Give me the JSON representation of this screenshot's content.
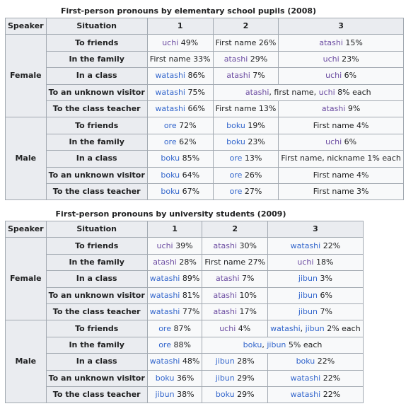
{
  "table1": {
    "caption": "First-person pronouns by elementary school pupils (2008)",
    "headers": [
      "Speaker",
      "Situation",
      "1",
      "2",
      "3"
    ],
    "groups": [
      {
        "speaker": "Female",
        "rows": [
          {
            "situation": "To friends",
            "c1": {
              "w": "uchi",
              "p": " 49%"
            },
            "c2": {
              "w": "First name",
              "p": " 26%"
            },
            "c3": {
              "w": "atashi",
              "p": " 15%"
            }
          },
          {
            "situation": "In the family",
            "c1": {
              "w": "First name",
              "p": " 33%"
            },
            "c2": {
              "w": "atashi",
              "p": " 29%"
            },
            "c3": {
              "w": "uchi",
              "p": " 23%"
            }
          },
          {
            "situation": "In a class",
            "c1": {
              "w": "watashi",
              "p": " 86%"
            },
            "c2": {
              "w": "atashi",
              "p": " 7%"
            },
            "c3": {
              "w": "uchi",
              "p": " 6%"
            }
          },
          {
            "situation": "To an unknown visitor",
            "c1": {
              "w": "watashi",
              "p": " 75%"
            },
            "span": {
              "w1": "atashi",
              "m": ", first name, ",
              "w2": "uchi",
              "p": " 8% each"
            }
          },
          {
            "situation": "To the class teacher",
            "c1": {
              "w": "watashi",
              "p": " 66%"
            },
            "c2": {
              "w": "First name",
              "p": " 13%"
            },
            "c3": {
              "w": "atashi",
              "p": " 9%"
            }
          }
        ]
      },
      {
        "speaker": "Male",
        "rows": [
          {
            "situation": "To friends",
            "c1": {
              "w": "ore",
              "p": " 72%"
            },
            "c2": {
              "w": "boku",
              "p": " 19%"
            },
            "c3": {
              "w": "First name",
              "p": " 4%"
            }
          },
          {
            "situation": "In the family",
            "c1": {
              "w": "ore",
              "p": " 62%"
            },
            "c2": {
              "w": "boku",
              "p": " 23%"
            },
            "c3": {
              "w": "uchi",
              "p": " 6%"
            }
          },
          {
            "situation": "In a class",
            "c1": {
              "w": "boku",
              "p": " 85%"
            },
            "c2": {
              "w": "ore",
              "p": " 13%"
            },
            "c3": {
              "w": "First name, nickname",
              "p": " 1% each"
            }
          },
          {
            "situation": "To an unknown visitor",
            "c1": {
              "w": "boku",
              "p": " 64%"
            },
            "c2": {
              "w": "ore",
              "p": " 26%"
            },
            "c3": {
              "w": "First name",
              "p": " 4%"
            }
          },
          {
            "situation": "To the class teacher",
            "c1": {
              "w": "boku",
              "p": " 67%"
            },
            "c2": {
              "w": "ore",
              "p": " 27%"
            },
            "c3": {
              "w": "First name",
              "p": " 3%"
            }
          }
        ]
      }
    ]
  },
  "table2": {
    "caption": "First-person pronouns by university students (2009)",
    "headers": [
      "Speaker",
      "Situation",
      "1",
      "2",
      "3"
    ],
    "groups": [
      {
        "speaker": "Female",
        "rows": [
          {
            "situation": "To friends",
            "c1": {
              "w": "uchi",
              "p": " 39%"
            },
            "c2": {
              "w": "atashi",
              "p": " 30%"
            },
            "c3": {
              "w": "watashi",
              "p": " 22%"
            }
          },
          {
            "situation": "In the family",
            "c1": {
              "w": "atashi",
              "p": " 28%"
            },
            "c2": {
              "w": "First name",
              "p": " 27%"
            },
            "c3": {
              "w": "uchi",
              "p": " 18%"
            }
          },
          {
            "situation": "In a class",
            "c1": {
              "w": "watashi",
              "p": " 89%"
            },
            "c2": {
              "w": "atashi",
              "p": " 7%"
            },
            "c3": {
              "w": "jibun",
              "p": " 3%"
            }
          },
          {
            "situation": "To an unknown visitor",
            "c1": {
              "w": "watashi",
              "p": " 81%"
            },
            "c2": {
              "w": "atashi",
              "p": " 10%"
            },
            "c3": {
              "w": "jibun",
              "p": " 6%"
            }
          },
          {
            "situation": "To the class teacher",
            "c1": {
              "w": "watashi",
              "p": " 77%"
            },
            "c2": {
              "w": "atashi",
              "p": " 17%"
            },
            "c3": {
              "w": "jibun",
              "p": " 7%"
            }
          }
        ]
      },
      {
        "speaker": "Male",
        "rows": [
          {
            "situation": "To friends",
            "c1": {
              "w": "ore",
              "p": " 87%"
            },
            "c2": {
              "w": "uchi",
              "p": " 4%"
            },
            "c3": {
              "w1": "watashi",
              "m": ", ",
              "w2": "jibun",
              "p": " 2% each"
            }
          },
          {
            "situation": "In the family",
            "c1": {
              "w": "ore",
              "p": " 88%"
            },
            "span": {
              "w1": "boku",
              "m": ", ",
              "w2": "jibun",
              "p": " 5% each"
            }
          },
          {
            "situation": "In a class",
            "c1": {
              "w": "watashi",
              "p": " 48%"
            },
            "c2": {
              "w": "jibun",
              "p": " 28%"
            },
            "c3": {
              "w": "boku",
              "p": " 22%"
            }
          },
          {
            "situation": "To an unknown visitor",
            "c1": {
              "w": "boku",
              "p": " 36%"
            },
            "c2": {
              "w": "jibun",
              "p": " 29%"
            },
            "c3": {
              "w": "watashi",
              "p": " 22%"
            }
          },
          {
            "situation": "To the class teacher",
            "c1": {
              "w": "jibun",
              "p": " 38%"
            },
            "c2": {
              "w": "boku",
              "p": " 29%"
            },
            "c3": {
              "w": "watashi",
              "p": " 22%"
            }
          }
        ]
      }
    ]
  },
  "link_words": [
    "uchi",
    "atashi",
    "watashi",
    "ore",
    "boku",
    "jibun"
  ],
  "visited_link_words": [
    "uchi",
    "atashi"
  ],
  "colors": {
    "link": "#3366cc",
    "visited_link": "#6b4ba1",
    "header_bg": "#eaecf0",
    "cell_bg": "#f8f9fa",
    "border": "#a2a9b1"
  }
}
